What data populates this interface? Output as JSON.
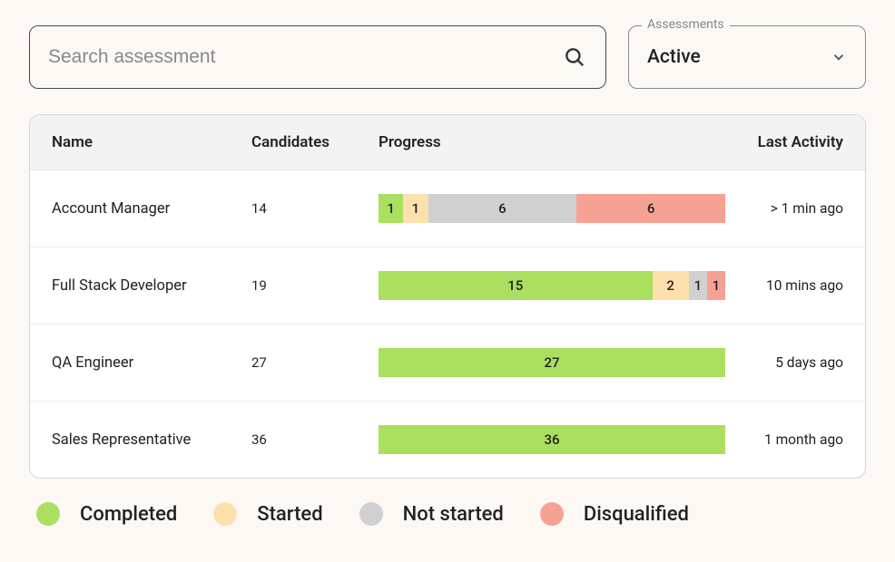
{
  "colors": {
    "completed": "#aadf5f",
    "started": "#fde1ad",
    "not_started": "#d0d0d0",
    "disqualified": "#f7a194",
    "page_bg": "#fdf8f3",
    "border": "#d6d6d6",
    "header_bg": "#f3f3f3",
    "text": "#222222",
    "muted": "#888888"
  },
  "search": {
    "placeholder": "Search assessment"
  },
  "filter": {
    "legend": "Assessments",
    "value": "Active"
  },
  "table": {
    "columns": {
      "name": "Name",
      "candidates": "Candidates",
      "progress": "Progress",
      "last_activity": "Last Activity"
    },
    "rows": [
      {
        "name": "Account Manager",
        "candidates": "14",
        "segments": [
          {
            "value": 1,
            "kind": "completed"
          },
          {
            "value": 1,
            "kind": "started"
          },
          {
            "value": 6,
            "kind": "not_started"
          },
          {
            "value": 6,
            "kind": "disqualified"
          }
        ],
        "last_activity": "> 1 min ago"
      },
      {
        "name": "Full Stack Developer",
        "candidates": "19",
        "segments": [
          {
            "value": 15,
            "kind": "completed"
          },
          {
            "value": 2,
            "kind": "started"
          },
          {
            "value": 1,
            "kind": "not_started"
          },
          {
            "value": 1,
            "kind": "disqualified"
          }
        ],
        "last_activity": "10 mins ago"
      },
      {
        "name": "QA Engineer",
        "candidates": "27",
        "segments": [
          {
            "value": 27,
            "kind": "completed"
          }
        ],
        "last_activity": "5 days ago"
      },
      {
        "name": "Sales Representative",
        "candidates": "36",
        "segments": [
          {
            "value": 36,
            "kind": "completed"
          }
        ],
        "last_activity": "1 month ago"
      }
    ]
  },
  "legend": [
    {
      "kind": "completed",
      "label": "Completed"
    },
    {
      "kind": "started",
      "label": "Started"
    },
    {
      "kind": "not_started",
      "label": "Not started"
    },
    {
      "kind": "disqualified",
      "label": "Disqualified"
    }
  ]
}
